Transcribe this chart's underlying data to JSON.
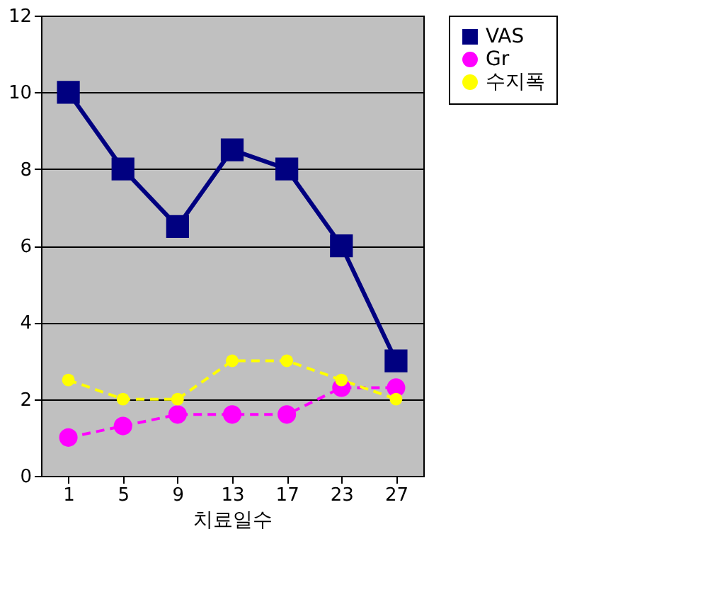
{
  "chart_data": {
    "type": "line",
    "xlabel": "치료일수",
    "categories": [
      "1",
      "5",
      "9",
      "13",
      "17",
      "23",
      "27"
    ],
    "series": [
      {
        "name": "VAS",
        "color": "#000080",
        "values": [
          10,
          8,
          6.5,
          8.5,
          8,
          6,
          3
        ],
        "marker": "square",
        "line_style": "solid"
      },
      {
        "name": "Gr",
        "color": "#ff00ff",
        "values": [
          1,
          1.3,
          1.6,
          1.6,
          1.6,
          2.3,
          2.3
        ],
        "marker": "circle",
        "line_style": "dashed"
      },
      {
        "name": "수지폭",
        "color": "#ffff00",
        "values": [
          2.5,
          2,
          2,
          3,
          3,
          2.5,
          2
        ],
        "marker": "circle",
        "line_style": "dashed"
      }
    ],
    "ylim": [
      0,
      12
    ],
    "yticks": [
      0,
      2,
      4,
      6,
      8,
      10,
      12
    ],
    "grid": "y",
    "legend": "right"
  }
}
